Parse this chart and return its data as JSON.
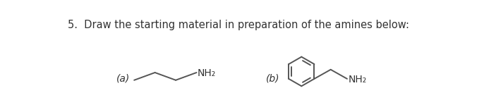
{
  "title": "5.  Draw the starting material in preparation of the amines below:",
  "background_color": "#ffffff",
  "text_color": "#333333",
  "label_a": "(a)",
  "label_b": "(b)",
  "nh2_label": "NH₂",
  "line_color": "#555555",
  "line_width": 1.4,
  "title_fontsize": 10.5,
  "label_fontsize": 10,
  "nh2_fontsize": 10
}
